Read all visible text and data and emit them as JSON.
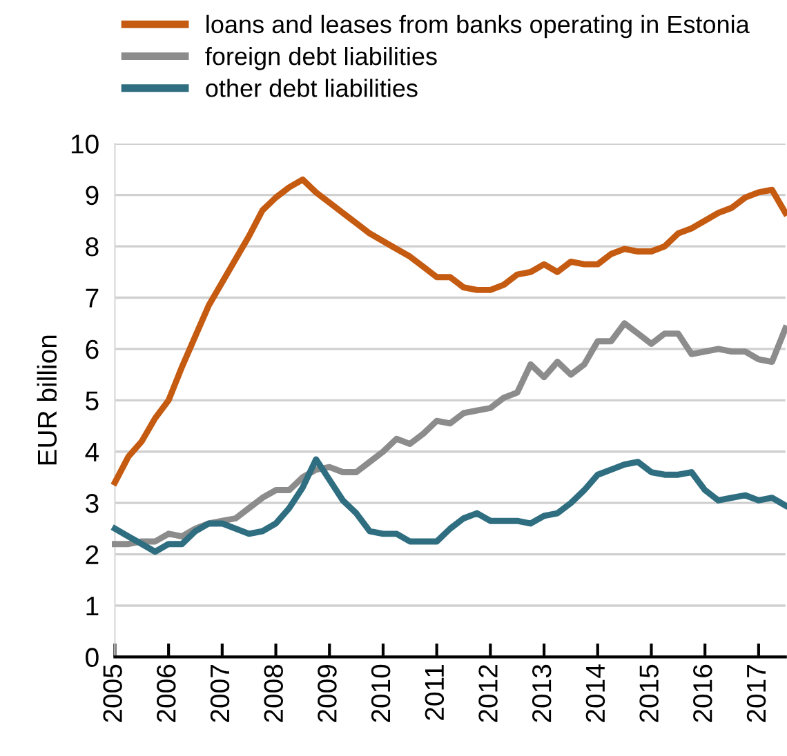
{
  "chart_data": {
    "type": "line",
    "ylabel": "EUR billion",
    "x": [
      2005,
      2005.25,
      2005.5,
      2005.75,
      2006,
      2006.25,
      2006.5,
      2006.75,
      2007,
      2007.25,
      2007.5,
      2007.75,
      2008,
      2008.25,
      2008.5,
      2008.75,
      2009,
      2009.25,
      2009.5,
      2009.75,
      2010,
      2010.25,
      2010.5,
      2010.75,
      2011,
      2011.25,
      2011.5,
      2011.75,
      2012,
      2012.25,
      2012.5,
      2012.75,
      2013,
      2013.25,
      2013.5,
      2013.75,
      2014,
      2014.25,
      2014.5,
      2014.75,
      2015,
      2015.25,
      2015.5,
      2015.75,
      2016,
      2016.25,
      2016.5,
      2016.75,
      2017,
      2017.25,
      2017.5
    ],
    "series": [
      {
        "name": "loans and leases from banks operating in Estonia",
        "color": "#c55a11",
        "values": [
          3.4,
          3.9,
          4.2,
          4.65,
          5.0,
          5.65,
          6.25,
          6.85,
          7.3,
          7.75,
          8.2,
          8.7,
          8.95,
          9.15,
          9.3,
          9.05,
          8.85,
          8.65,
          8.45,
          8.25,
          8.1,
          7.95,
          7.8,
          7.6,
          7.4,
          7.4,
          7.2,
          7.15,
          7.15,
          7.25,
          7.45,
          7.5,
          7.65,
          7.5,
          7.7,
          7.65,
          7.65,
          7.85,
          7.95,
          7.9,
          7.9,
          8.0,
          8.25,
          8.35,
          8.5,
          8.65,
          8.75,
          8.95,
          9.05,
          9.1,
          8.65
        ]
      },
      {
        "name": "foreign debt liabilities",
        "color": "#8c8c8c",
        "values": [
          2.2,
          2.2,
          2.25,
          2.25,
          2.4,
          2.35,
          2.5,
          2.6,
          2.65,
          2.7,
          2.9,
          3.1,
          3.25,
          3.25,
          3.5,
          3.65,
          3.7,
          3.6,
          3.6,
          3.8,
          4.0,
          4.25,
          4.15,
          4.35,
          4.6,
          4.55,
          4.75,
          4.8,
          4.85,
          5.05,
          5.15,
          5.7,
          5.45,
          5.75,
          5.5,
          5.7,
          6.15,
          6.15,
          6.5,
          6.3,
          6.1,
          6.3,
          6.3,
          5.9,
          5.95,
          6.0,
          5.95,
          5.95,
          5.8,
          5.75,
          6.4
        ]
      },
      {
        "name": "other debt liabilities",
        "color": "#2e6e80",
        "values": [
          2.5,
          2.35,
          2.2,
          2.05,
          2.2,
          2.2,
          2.45,
          2.6,
          2.6,
          2.5,
          2.4,
          2.45,
          2.6,
          2.9,
          3.3,
          3.85,
          3.45,
          3.05,
          2.8,
          2.45,
          2.4,
          2.4,
          2.25,
          2.25,
          2.25,
          2.5,
          2.7,
          2.8,
          2.65,
          2.65,
          2.65,
          2.6,
          2.75,
          2.8,
          3.0,
          3.25,
          3.55,
          3.65,
          3.75,
          3.8,
          3.6,
          3.55,
          3.55,
          3.6,
          3.25,
          3.05,
          3.1,
          3.15,
          3.05,
          3.1,
          2.95
        ]
      }
    ],
    "xlim": [
      2005,
      2017.5
    ],
    "xticks": [
      {
        "value": 2005,
        "label": "2005"
      },
      {
        "value": 2006,
        "label": "2006"
      },
      {
        "value": 2007,
        "label": "2007"
      },
      {
        "value": 2008,
        "label": "2008"
      },
      {
        "value": 2009,
        "label": "2009"
      },
      {
        "value": 2010,
        "label": "2010"
      },
      {
        "value": 2011,
        "label": "2011"
      },
      {
        "value": 2012,
        "label": "2012"
      },
      {
        "value": 2013,
        "label": "2013"
      },
      {
        "value": 2014,
        "label": "2014"
      },
      {
        "value": 2015,
        "label": "2015"
      },
      {
        "value": 2016,
        "label": "2016"
      },
      {
        "value": 2017,
        "label": "2017"
      }
    ],
    "ylim": [
      0,
      10
    ],
    "yticks": [
      0,
      1,
      2,
      3,
      4,
      5,
      6,
      7,
      8,
      9,
      10
    ],
    "grid": "y",
    "legend": "top",
    "line_style": "solid",
    "marker": "none"
  }
}
